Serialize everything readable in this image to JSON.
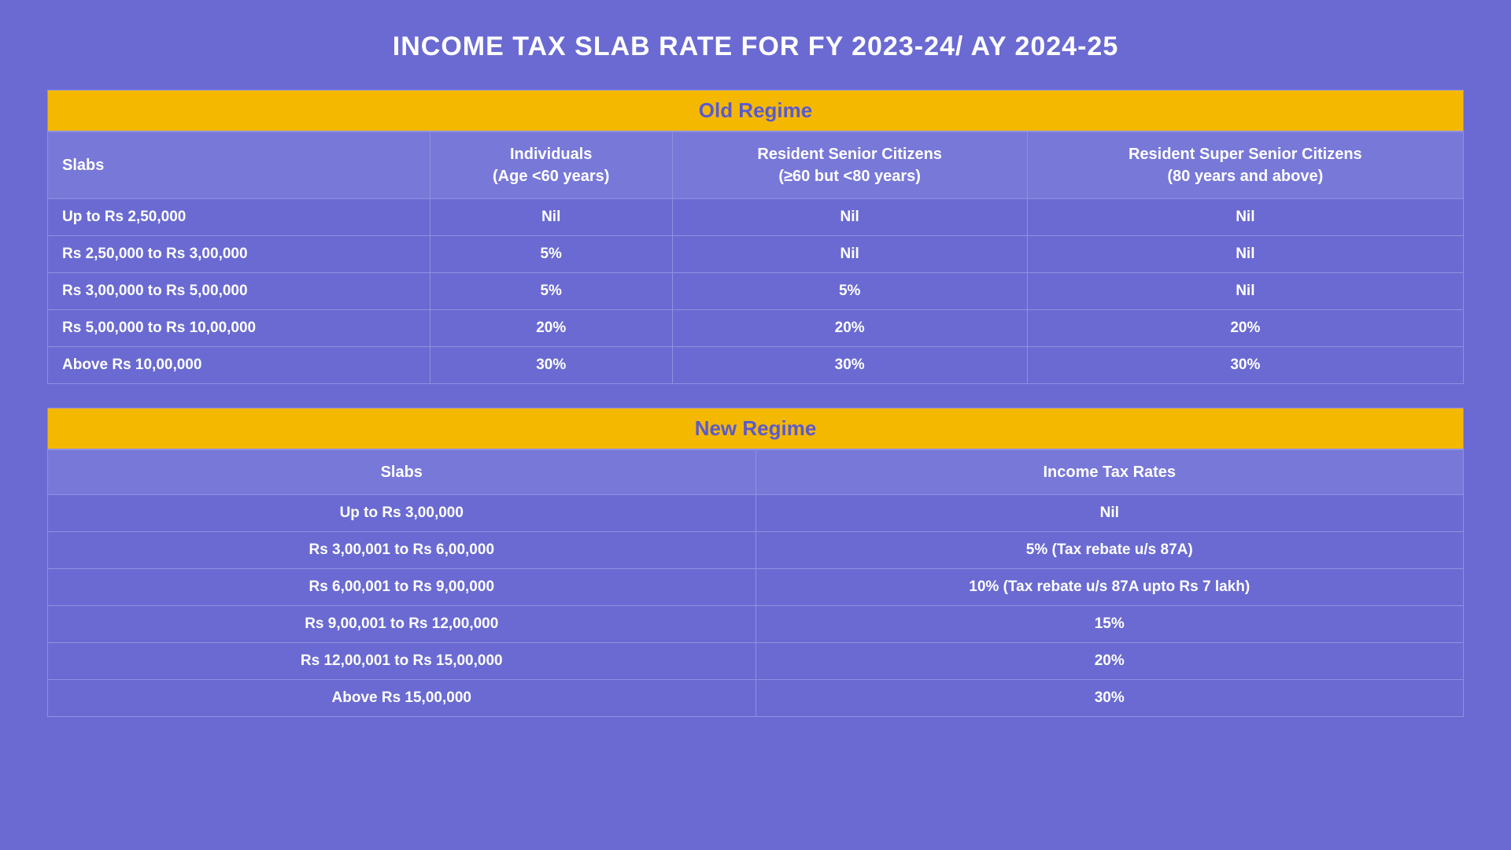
{
  "colors": {
    "background": "#6a6ad2",
    "header_bg": "#f5b800",
    "header_text": "#5a5ad0",
    "th_bg": "#7878d8",
    "border": "#9090e0",
    "text": "#ffffff"
  },
  "title": "INCOME TAX SLAB RATE FOR FY 2023-24/ AY 2024-25",
  "old_regime": {
    "header": "Old Regime",
    "columns": {
      "slabs": "Slabs",
      "individuals_line1": "Individuals",
      "individuals_line2": "(Age <60 years)",
      "senior_line1": "Resident Senior Citizens",
      "senior_line2": "(≥60 but <80 years)",
      "super_line1": "Resident Super Senior Citizens",
      "super_line2": "(80 years and above)"
    },
    "rows": [
      {
        "slab": "Up to Rs 2,50,000",
        "ind": "Nil",
        "sen": "Nil",
        "sup": "Nil"
      },
      {
        "slab": "Rs 2,50,000 to Rs 3,00,000",
        "ind": "5%",
        "sen": "Nil",
        "sup": "Nil"
      },
      {
        "slab": "Rs 3,00,000 to Rs 5,00,000",
        "ind": "5%",
        "sen": "5%",
        "sup": "Nil"
      },
      {
        "slab": "Rs 5,00,000 to Rs 10,00,000",
        "ind": "20%",
        "sen": "20%",
        "sup": "20%"
      },
      {
        "slab": "Above  Rs 10,00,000",
        "ind": "30%",
        "sen": "30%",
        "sup": "30%"
      }
    ]
  },
  "new_regime": {
    "header": "New Regime",
    "columns": {
      "slabs": "Slabs",
      "rates": "Income Tax Rates"
    },
    "rows": [
      {
        "slab": "Up to Rs 3,00,000",
        "rate": "Nil"
      },
      {
        "slab": "Rs 3,00,001 to Rs 6,00,000",
        "rate": "5% (Tax rebate u/s 87A)"
      },
      {
        "slab": "Rs 6,00,001 to Rs 9,00,000",
        "rate": "10% (Tax rebate u/s 87A upto Rs 7 lakh)"
      },
      {
        "slab": "Rs 9,00,001 to Rs 12,00,000",
        "rate": "15%"
      },
      {
        "slab": "Rs 12,00,001 to Rs 15,00,000",
        "rate": "20%"
      },
      {
        "slab": "Above  Rs 15,00,000",
        "rate": "30%"
      }
    ]
  }
}
